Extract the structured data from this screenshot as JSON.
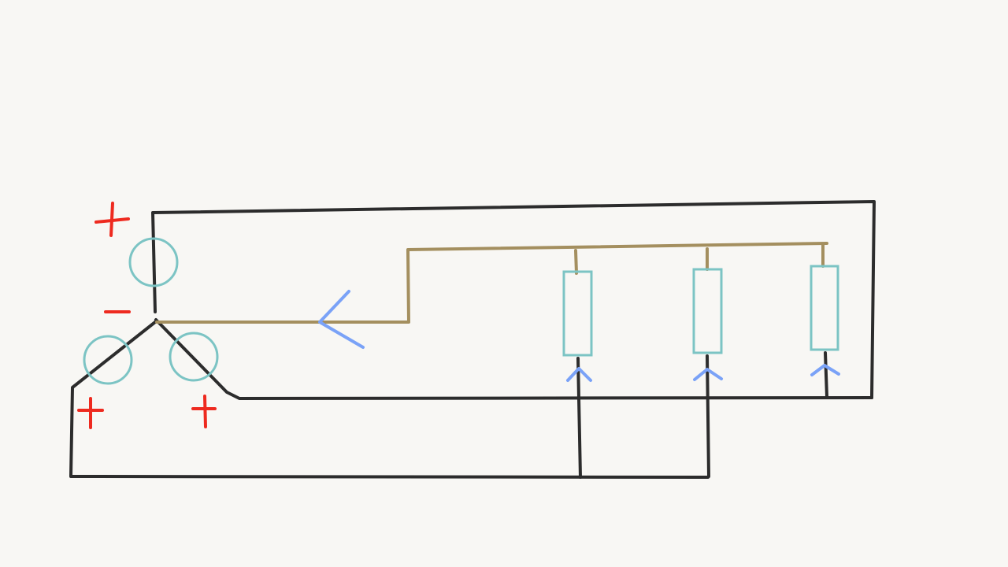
{
  "diagram": {
    "kind": "hand-drawn circuit sketch",
    "background_color": "#f8f7f4",
    "colors": {
      "wire": "#2c2c2c",
      "neutral_wire": "#a48f5f",
      "source_circle": "#7cc4c4",
      "resistor": "#7cc4c4",
      "polarity_sign": "#ee2a1f",
      "arrow": "#7aa2f7"
    },
    "sources": [
      {
        "id": "source-top",
        "polarity_outer": "+",
        "polarity_inner": "-"
      },
      {
        "id": "source-left",
        "polarity_outer": "+"
      },
      {
        "id": "source-right",
        "polarity_outer": "+"
      }
    ],
    "loads": [
      {
        "id": "resistor-1",
        "symbol": "rectangle"
      },
      {
        "id": "resistor-2",
        "symbol": "rectangle"
      },
      {
        "id": "resistor-3",
        "symbol": "rectangle"
      }
    ],
    "current_arrows": [
      {
        "id": "neutral-arrow",
        "direction": "left"
      },
      {
        "id": "load-arrow-1",
        "direction": "up"
      },
      {
        "id": "load-arrow-2",
        "direction": "up"
      },
      {
        "id": "load-arrow-3",
        "direction": "up"
      }
    ]
  }
}
